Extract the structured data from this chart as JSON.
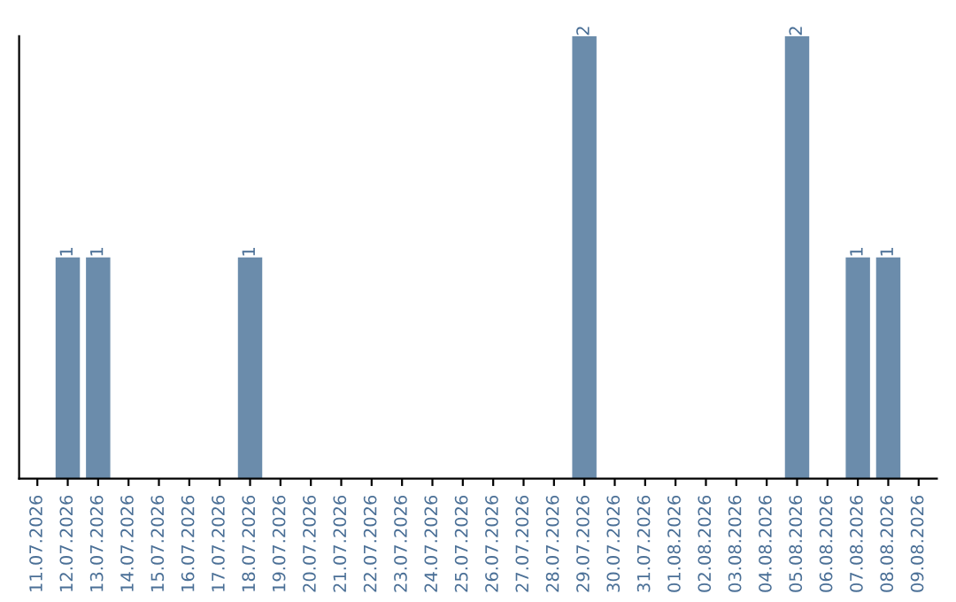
{
  "chart_data": {
    "type": "bar",
    "categories": [
      "11.07.2026",
      "12.07.2026",
      "13.07.2026",
      "14.07.2026",
      "15.07.2026",
      "16.07.2026",
      "17.07.2026",
      "18.07.2026",
      "19.07.2026",
      "20.07.2026",
      "21.07.2026",
      "22.07.2026",
      "23.07.2026",
      "24.07.2026",
      "25.07.2026",
      "26.07.2026",
      "27.07.2026",
      "28.07.2026",
      "29.07.2026",
      "30.07.2026",
      "31.07.2026",
      "01.08.2026",
      "02.08.2026",
      "03.08.2026",
      "04.08.2026",
      "05.08.2026",
      "06.08.2026",
      "07.08.2026",
      "08.08.2026",
      "09.08.2026"
    ],
    "values": [
      0,
      1,
      1,
      0,
      0,
      0,
      0,
      1,
      0,
      0,
      0,
      0,
      0,
      0,
      0,
      0,
      0,
      0,
      2,
      0,
      0,
      0,
      0,
      0,
      0,
      2,
      0,
      1,
      1,
      0
    ],
    "value_labels": [
      null,
      "1",
      "1",
      null,
      null,
      null,
      null,
      "1",
      null,
      null,
      null,
      null,
      null,
      null,
      null,
      null,
      null,
      null,
      "2",
      null,
      null,
      null,
      null,
      null,
      null,
      "2",
      null,
      "1",
      "1",
      null
    ],
    "color": "#6b8cab",
    "ylim": [
      0,
      2
    ],
    "tick_labels": "x",
    "grid": false,
    "legend": false
  }
}
